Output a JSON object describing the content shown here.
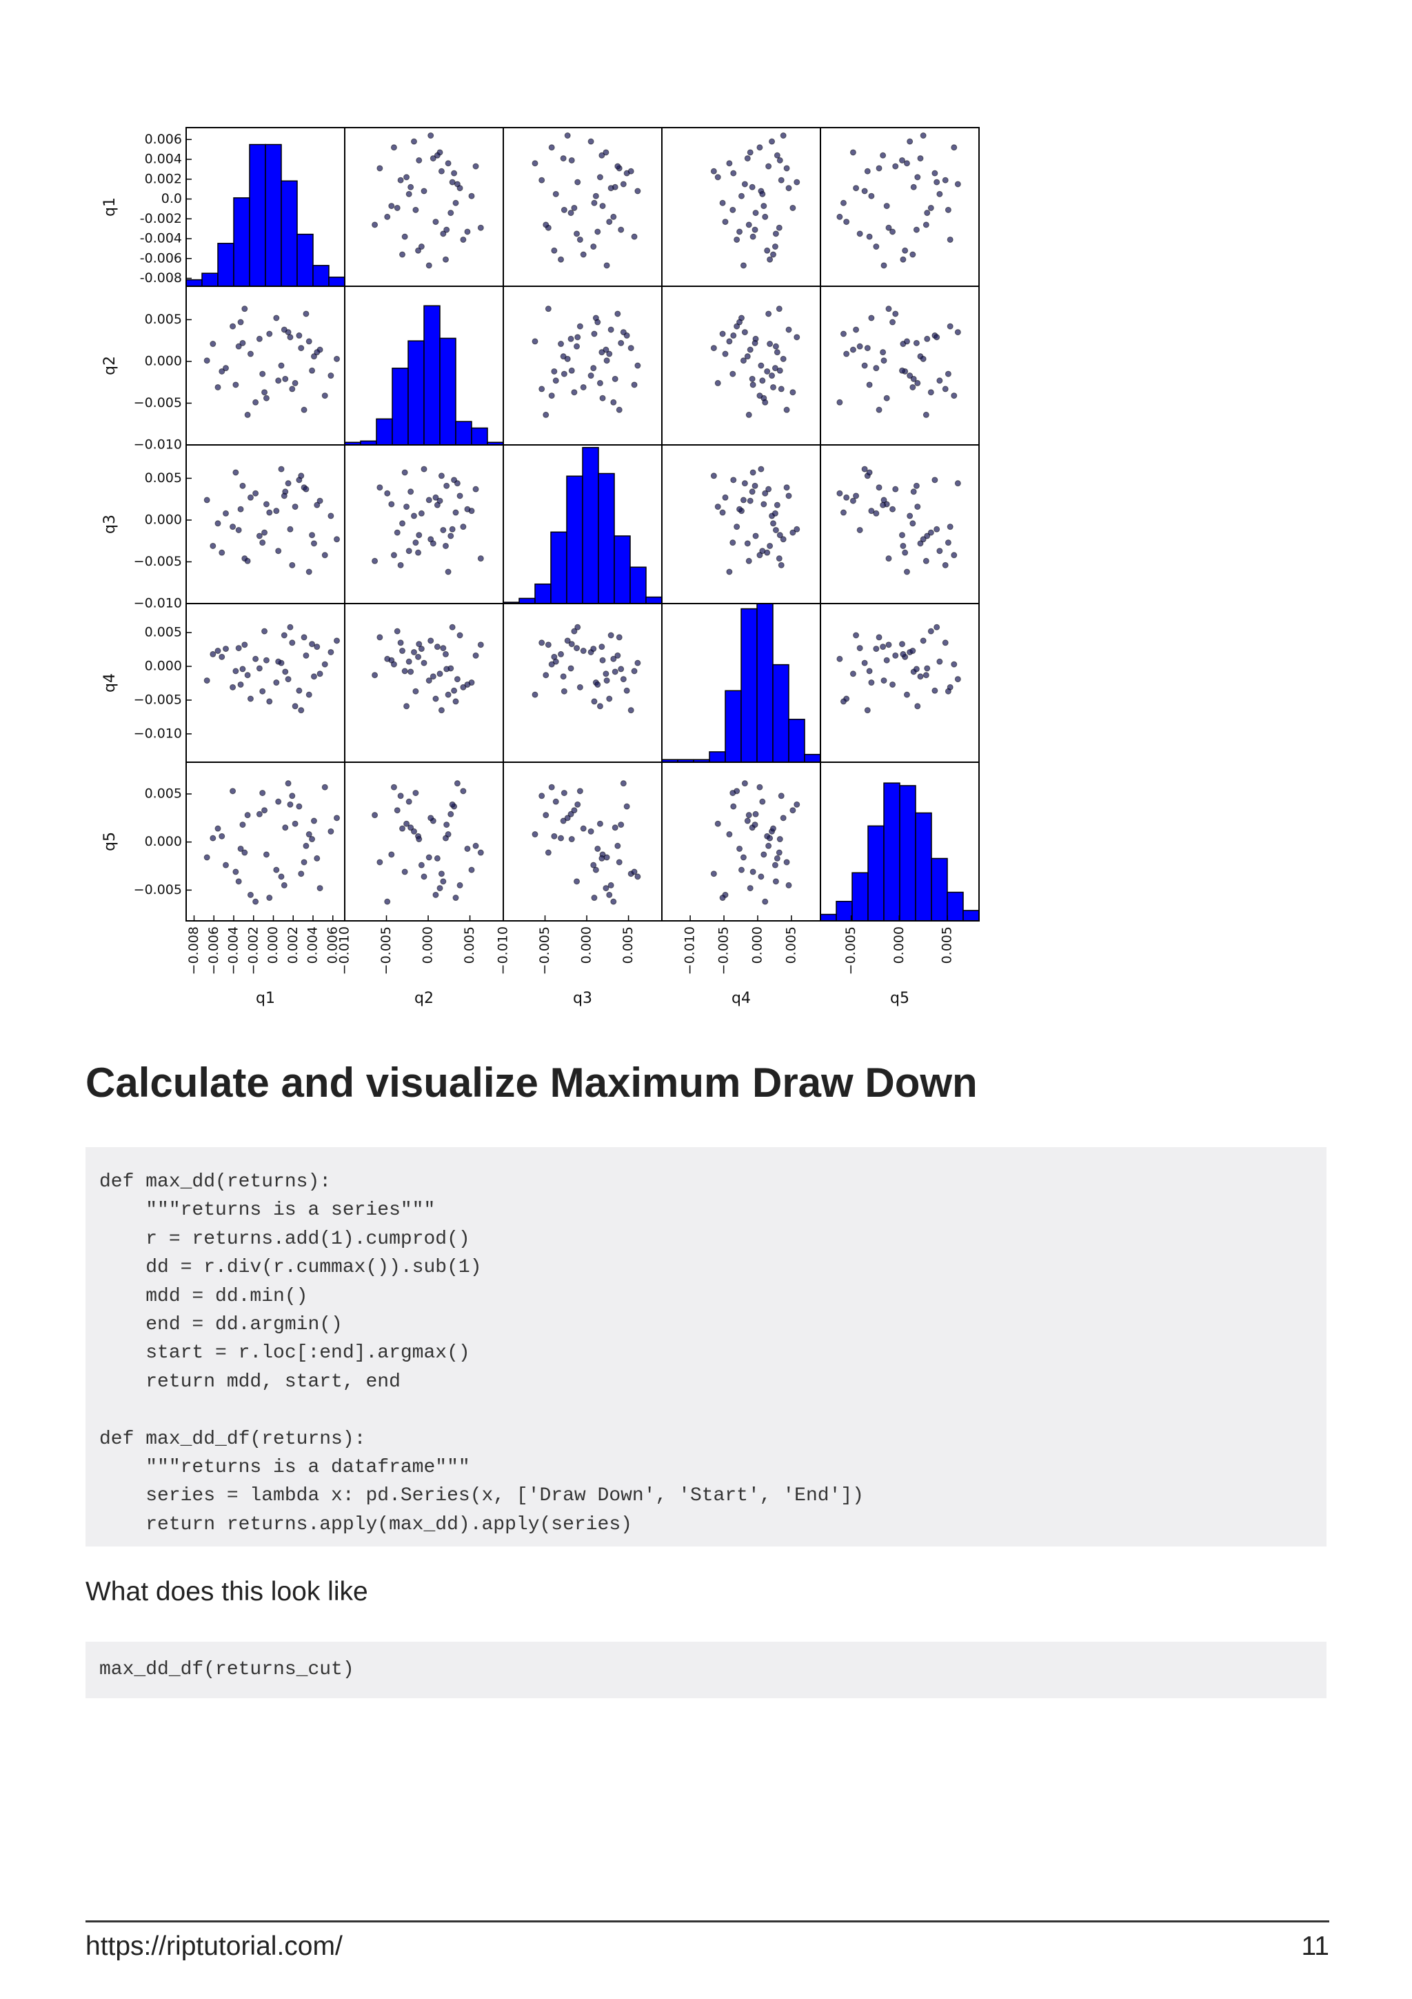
{
  "chart_data": {
    "type": "scatter_matrix",
    "point_color": "#1b1b5a",
    "hist_color": "#0000ff",
    "variables": [
      {
        "name": "q1",
        "lim": [
          -0.0088,
          0.0072
        ],
        "yticks": [
          0.006,
          0.004,
          0.002,
          {
            "value": 0,
            "label": "0.0"
          },
          -0.002,
          -0.004,
          -0.006,
          -0.008
        ],
        "xticks": [
          {
            "value": -0.008,
            "label": "−0.008"
          },
          {
            "value": -0.006,
            "label": "−0.006"
          },
          {
            "value": -0.004,
            "label": "−0.004"
          },
          {
            "value": -0.002,
            "label": "−0.002"
          },
          {
            "value": 0,
            "label": "0.000"
          },
          0.002,
          0.004,
          0.006
        ],
        "bins": [
          -0.0088,
          -0.0072,
          -0.0056,
          -0.004,
          -0.0024,
          -0.0008,
          0.0008,
          0.0024,
          0.004,
          0.0056,
          0.0072
        ],
        "counts": [
          5,
          10,
          33,
          68,
          109,
          109,
          81,
          40,
          16,
          7
        ]
      },
      {
        "name": "q2",
        "lim": [
          -0.01,
          0.009
        ],
        "yticks": [
          0.005,
          {
            "value": 0,
            "label": "0.000"
          },
          {
            "value": -0.005,
            "label": "−0.005"
          },
          {
            "value": -0.01,
            "label": "−0.010"
          }
        ],
        "xticks": [
          {
            "value": -0.01,
            "label": "−0.010"
          },
          {
            "value": -0.005,
            "label": "−0.005"
          },
          {
            "value": 0,
            "label": "0.000"
          },
          0.005
        ],
        "bins": [
          -0.01,
          -0.0081,
          -0.0062,
          -0.0043,
          -0.0024,
          -0.0005,
          0.0014,
          0.0033,
          0.0052,
          0.0071,
          0.009
        ],
        "counts": [
          2,
          3,
          20,
          59,
          80,
          107,
          82,
          18,
          13,
          2
        ]
      },
      {
        "name": "q3",
        "lim": [
          -0.01,
          0.009
        ],
        "yticks": [
          0.005,
          {
            "value": 0,
            "label": "0.000"
          },
          {
            "value": -0.005,
            "label": "−0.005"
          },
          {
            "value": -0.01,
            "label": "−0.010"
          }
        ],
        "xticks": [
          {
            "value": -0.01,
            "label": "−0.010"
          },
          {
            "value": -0.005,
            "label": "−0.005"
          },
          {
            "value": 0,
            "label": "0.000"
          },
          0.005
        ],
        "bins": [
          -0.01,
          -0.0081,
          -0.0062,
          -0.0043,
          -0.0024,
          -0.0005,
          0.0014,
          0.0033,
          0.0052,
          0.0071,
          0.009
        ],
        "counts": [
          1,
          4,
          15,
          55,
          98,
          120,
          100,
          52,
          28,
          5
        ]
      },
      {
        "name": "q4",
        "lim": [
          -0.0142,
          0.0093
        ],
        "yticks": [
          0.005,
          {
            "value": 0,
            "label": "0.000"
          },
          {
            "value": -0.005,
            "label": "−0.005"
          },
          {
            "value": -0.01,
            "label": "−0.010"
          }
        ],
        "xticks": [
          {
            "value": -0.01,
            "label": "−0.010"
          },
          {
            "value": -0.005,
            "label": "−0.005"
          },
          {
            "value": 0,
            "label": "0.000"
          },
          0.005
        ],
        "bins": [
          -0.0142,
          -0.01185,
          -0.0095,
          -0.00715,
          -0.0048,
          -0.00245,
          -0.0001,
          0.00225,
          0.0046,
          0.00695,
          0.0093
        ],
        "counts": [
          2,
          2,
          2,
          8,
          55,
          118,
          122,
          75,
          33,
          6
        ]
      },
      {
        "name": "q5",
        "lim": [
          -0.0082,
          0.0083
        ],
        "yticks": [
          0.005,
          {
            "value": 0,
            "label": "0.000"
          },
          {
            "value": -0.005,
            "label": "−0.005"
          }
        ],
        "xticks": [
          {
            "value": -0.005,
            "label": "−0.005"
          },
          {
            "value": 0,
            "label": "0.000"
          },
          0.005
        ],
        "bins": [
          -0.0082,
          -0.00655,
          -0.0049,
          -0.00325,
          -0.0016,
          5e-05,
          0.0017,
          0.00335,
          0.005,
          0.00665,
          0.0083
        ],
        "counts": [
          5,
          15,
          37,
          73,
          106,
          104,
          83,
          48,
          22,
          8
        ]
      }
    ],
    "observations": [
      [
        0.0012,
        -0.0021,
        0.0034,
        -0.0008,
        0.0015
      ],
      [
        -0.0035,
        0.0018,
        -0.0012,
        0.0027,
        -0.0041
      ],
      [
        0.0041,
        0.0006,
        -0.0028,
        -0.0015,
        0.0022
      ],
      [
        -0.0007,
        -0.0044,
        0.0019,
        0.0009,
        -0.0013
      ],
      [
        0.0026,
        0.0031,
        0.0048,
        -0.0036,
        0.0037
      ],
      [
        -0.0052,
        -0.0012,
        -0.0039,
        0.0014,
        0.0006
      ],
      [
        0.0003,
        0.0052,
        0.0011,
        -0.0024,
        -0.0029
      ],
      [
        0.0019,
        -0.0033,
        -0.0054,
        0.0035,
        0.0048
      ],
      [
        -0.0023,
        0.0009,
        0.0027,
        -0.0048,
        -0.0055
      ],
      [
        0.0058,
        -0.0017,
        0.0005,
        0.0021,
        0.0011
      ],
      [
        -0.0014,
        0.0027,
        -0.0019,
        -0.0003,
        0.0029
      ],
      [
        0.0031,
        -0.0058,
        0.0039,
        0.0043,
        -0.0021
      ],
      [
        -0.0041,
        0.0042,
        -0.0008,
        -0.0031,
        0.0053
      ],
      [
        0.0008,
        -0.0005,
        0.0061,
        0.0005,
        -0.0036
      ],
      [
        -0.0061,
        0.0021,
        -0.0031,
        0.0018,
        0.0004
      ],
      [
        0.0022,
        -0.0026,
        0.0016,
        -0.0059,
        0.0019
      ],
      [
        -0.0029,
        0.0063,
        -0.0046,
        0.0032,
        -0.0011
      ],
      [
        0.0047,
        0.0014,
        0.0023,
        -0.0011,
        -0.0048
      ],
      [
        -0.0009,
        -0.0037,
        -0.0015,
        0.0052,
        0.0033
      ],
      [
        0.0015,
        0.0035,
        0.0044,
        -0.0019,
        0.0061
      ],
      [
        -0.0048,
        -0.0008,
        0.0008,
        0.0026,
        -0.0024
      ],
      [
        0.0036,
        0.0024,
        -0.0062,
        -0.0042,
        0.0008
      ],
      [
        -0.0018,
        -0.0049,
        0.0032,
        0.0011,
        -0.0062
      ],
      [
        0.0064,
        0.0003,
        -0.0023,
        0.0038,
        0.0025
      ],
      [
        -0.0033,
        0.0047,
        0.0013,
        -0.0027,
        -0.0007
      ],
      [
        0.0005,
        -0.0023,
        -0.0037,
        0.0007,
        0.0042
      ],
      [
        0.0028,
        0.0016,
        0.0053,
        -0.0065,
        -0.0033
      ],
      [
        -0.0056,
        -0.0031,
        -0.0004,
        0.0023,
        0.0014
      ],
      [
        0.0011,
        0.0038,
        0.0029,
        0.0046,
        -0.0045
      ],
      [
        -0.0026,
        -0.0064,
        -0.0049,
        -0.0013,
        0.0028
      ],
      [
        0.0044,
        0.0011,
        0.0018,
        0.0029,
        -0.0017
      ],
      [
        -0.0011,
        -0.0015,
        -0.0027,
        -0.0037,
        0.0051
      ],
      [
        0.0033,
        0.0057,
        0.0037,
        0.0016,
        -0.0004
      ],
      [
        -0.0038,
        -0.0028,
        0.0057,
        -0.0007,
        -0.0031
      ],
      [
        0.0017,
        0.0029,
        -0.0011,
        0.0058,
        0.0039
      ],
      [
        -0.0067,
        0.0001,
        0.0024,
        -0.0021,
        -0.0016
      ],
      [
        0.0052,
        -0.0041,
        -0.0042,
        0.0003,
        0.0057
      ],
      [
        -0.0004,
        0.0033,
        0.0009,
        -0.0052,
        -0.0058
      ],
      [
        0.0039,
        -0.0011,
        -0.0018,
        0.0033,
        0.0003
      ],
      [
        -0.0031,
        0.0022,
        0.0041,
        -0.0004,
        0.0018
      ]
    ]
  },
  "heading": "Calculate and visualize Maximum Draw Down",
  "code_block_1": [
    [
      "def max_dd(returns):",
      "    \"\"\"returns is a series\"\"\"",
      "    r = returns.add(1).cumprod()",
      "    dd = r.div(r.cummax()).sub(1)",
      "    mdd = dd.min()",
      "    end = dd.argmin()",
      "    start = r.loc[:end].argmax()",
      "    return mdd, start, end"
    ],
    [
      "def max_dd_df(returns):",
      "    \"\"\"returns is a dataframe\"\"\"",
      "    series = lambda x: pd.Series(x, ['Draw Down', 'Start', 'End'])",
      "    return returns.apply(max_dd).apply(series)"
    ]
  ],
  "paragraph": "What does this look like",
  "code_block_2": [
    "max_dd_df(returns_cut)"
  ],
  "footer": {
    "url": "https://riptutorial.com/",
    "page": "11"
  }
}
